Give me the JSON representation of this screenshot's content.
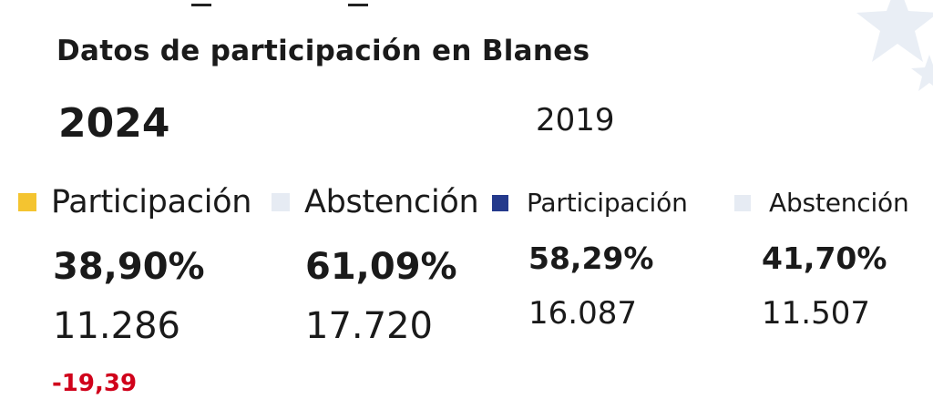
{
  "header": {
    "title": "Datos de participación en Blanes"
  },
  "years": {
    "current": "2024",
    "previous": "2019"
  },
  "current": {
    "participation": {
      "label": "Participación",
      "percent": "38,90%",
      "votes": "11.286",
      "change": "-19,39"
    },
    "abstention": {
      "label": "Abstención",
      "percent": "61,09%",
      "votes": "17.720"
    }
  },
  "previous": {
    "participation": {
      "label": "Participación",
      "percent": "58,29%",
      "votes": "16.087"
    },
    "abstention": {
      "label": "Abstención",
      "percent": "41,70%",
      "votes": "11.507"
    }
  },
  "colors": {
    "participation_current": "#f4c430",
    "participation_previous": "#243a8c",
    "abstention": "#e6ebf3",
    "negative_change": "#d0021b",
    "text": "#1a1a1a"
  },
  "icons": {
    "background_decoration": "star-icon"
  }
}
